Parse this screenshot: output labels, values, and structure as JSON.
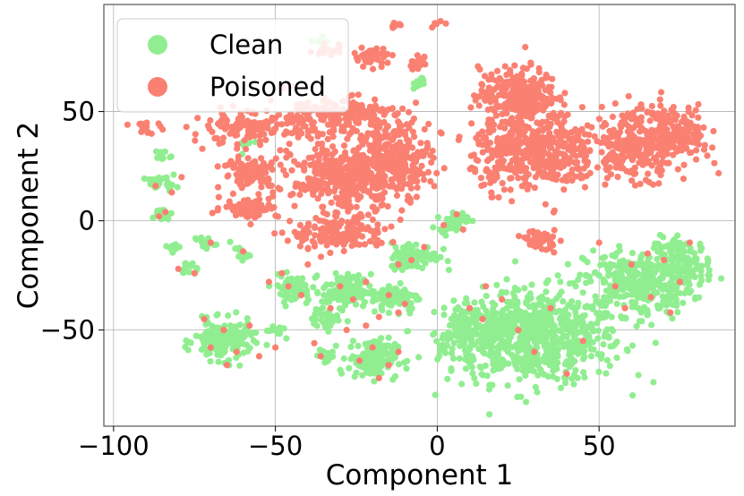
{
  "chart_data": {
    "type": "scatter",
    "title": "",
    "xlabel": "Component 1",
    "ylabel": "Component 2",
    "xlim": [
      -103,
      92
    ],
    "ylim": [
      -94,
      99
    ],
    "xticks": [
      -100,
      -50,
      0,
      50
    ],
    "yticks": [
      -50,
      0,
      50
    ],
    "xtick_labels": [
      "−100",
      "−50",
      "0",
      "50"
    ],
    "ytick_labels": [
      "−50",
      "0",
      "50"
    ],
    "grid": true,
    "legend_position": "top-left",
    "series": [
      {
        "name": "Clean",
        "color": "#90ee90",
        "clusters": [
          {
            "cx": 30,
            "cy": -53,
            "sx": 18,
            "sy": 14,
            "n": 700
          },
          {
            "cx": 62,
            "cy": -28,
            "sx": 11,
            "sy": 10,
            "n": 300
          },
          {
            "cx": 76,
            "cy": -20,
            "sx": 6,
            "sy": 8,
            "n": 120
          },
          {
            "cx": 10,
            "cy": -50,
            "sx": 6,
            "sy": 8,
            "n": 120
          },
          {
            "cx": -66,
            "cy": -55,
            "sx": 6,
            "sy": 6,
            "n": 170
          },
          {
            "cx": -20,
            "cy": -63,
            "sx": 5,
            "sy": 6,
            "n": 140
          },
          {
            "cx": -28,
            "cy": -32,
            "sx": 5,
            "sy": 5,
            "n": 110
          },
          {
            "cx": -13,
            "cy": -35,
            "sx": 5,
            "sy": 4,
            "n": 100
          },
          {
            "cx": -7,
            "cy": -16,
            "sx": 5,
            "sy": 4,
            "n": 110
          },
          {
            "cx": -45,
            "cy": -31,
            "sx": 4,
            "sy": 4,
            "n": 70
          },
          {
            "cx": 5,
            "cy": 0,
            "sx": 3,
            "sy": 3,
            "n": 45
          },
          {
            "cx": -85,
            "cy": 17,
            "sx": 3,
            "sy": 2,
            "n": 30
          },
          {
            "cx": -85,
            "cy": 3,
            "sx": 2,
            "sy": 2,
            "n": 20
          },
          {
            "cx": -5,
            "cy": 63,
            "sx": 1.5,
            "sy": 2,
            "n": 12
          },
          {
            "cx": -36,
            "cy": 82,
            "sx": 1.5,
            "sy": 1.5,
            "n": 8
          },
          {
            "cx": -85,
            "cy": 30,
            "sx": 2,
            "sy": 2,
            "n": 12
          },
          {
            "cx": -72,
            "cy": -10,
            "sx": 2,
            "sy": 2,
            "n": 14
          },
          {
            "cx": -77,
            "cy": -22,
            "sx": 2,
            "sy": 2,
            "n": 14
          },
          {
            "cx": -82,
            "cy": -12,
            "sx": 1.5,
            "sy": 1.5,
            "n": 10
          },
          {
            "cx": -61,
            "cy": -15,
            "sx": 2,
            "sy": 2,
            "n": 14
          },
          {
            "cx": -34,
            "cy": -45,
            "sx": 3,
            "sy": 3,
            "n": 30
          },
          {
            "cx": -34,
            "cy": -62,
            "sx": 2,
            "sy": 3,
            "n": 20
          },
          {
            "cx": -50,
            "cy": -50,
            "sx": 2,
            "sy": 2,
            "n": 14
          },
          {
            "cx": -60,
            "cy": 35,
            "sx": 2,
            "sy": 2,
            "n": 8
          }
        ]
      },
      {
        "name": "Poisoned",
        "color": "#fa8072",
        "clusters": [
          {
            "cx": 25,
            "cy": 58,
            "sx": 8,
            "sy": 8,
            "n": 260
          },
          {
            "cx": 30,
            "cy": 32,
            "sx": 13,
            "sy": 12,
            "n": 480
          },
          {
            "cx": 63,
            "cy": 36,
            "sx": 10,
            "sy": 11,
            "n": 300
          },
          {
            "cx": 76,
            "cy": 40,
            "sx": 5,
            "sy": 6,
            "n": 90
          },
          {
            "cx": -28,
            "cy": 20,
            "sx": 11,
            "sy": 10,
            "n": 380
          },
          {
            "cx": -12,
            "cy": 29,
            "sx": 7,
            "sy": 11,
            "n": 220
          },
          {
            "cx": -32,
            "cy": 48,
            "sx": 14,
            "sy": 6,
            "n": 200
          },
          {
            "cx": -58,
            "cy": 42,
            "sx": 12,
            "sy": 5,
            "n": 130
          },
          {
            "cx": -57,
            "cy": 22,
            "sx": 6,
            "sy": 5,
            "n": 100
          },
          {
            "cx": -58,
            "cy": 6,
            "sx": 6,
            "sy": 3,
            "n": 70
          },
          {
            "cx": -30,
            "cy": -6,
            "sx": 10,
            "sy": 5,
            "n": 170
          },
          {
            "cx": 32,
            "cy": -9,
            "sx": 3,
            "sy": 3,
            "n": 55
          },
          {
            "cx": -20,
            "cy": 75,
            "sx": 4,
            "sy": 3,
            "n": 40
          },
          {
            "cx": -6,
            "cy": 72,
            "sx": 2,
            "sy": 2,
            "n": 16
          },
          {
            "cx": -34,
            "cy": 78,
            "sx": 3,
            "sy": 2,
            "n": 16
          },
          {
            "cx": -13,
            "cy": 89,
            "sx": 1.5,
            "sy": 1,
            "n": 8
          },
          {
            "cx": 0,
            "cy": 90,
            "sx": 1,
            "sy": 1,
            "n": 5
          },
          {
            "cx": -90,
            "cy": 43,
            "sx": 3,
            "sy": 2,
            "n": 18
          }
        ],
        "scatter": [
          {
            "x": -82,
            "y": 13
          },
          {
            "x": -87,
            "y": 16
          },
          {
            "x": -79,
            "y": 20
          },
          {
            "x": -84,
            "y": 4
          },
          {
            "x": -86,
            "y": 2
          },
          {
            "x": -70,
            "y": -10
          },
          {
            "x": -75,
            "y": -24
          },
          {
            "x": -80,
            "y": -22
          },
          {
            "x": -60,
            "y": -14
          },
          {
            "x": -66,
            "y": -50
          },
          {
            "x": -70,
            "y": -58
          },
          {
            "x": -62,
            "y": -60
          },
          {
            "x": -58,
            "y": -48
          },
          {
            "x": -72,
            "y": -45
          },
          {
            "x": -65,
            "y": -66
          },
          {
            "x": -55,
            "y": -62
          },
          {
            "x": -50,
            "y": -58
          },
          {
            "x": -46,
            "y": -30
          },
          {
            "x": -42,
            "y": -34
          },
          {
            "x": -48,
            "y": -24
          },
          {
            "x": -30,
            "y": -30
          },
          {
            "x": -26,
            "y": -36
          },
          {
            "x": -22,
            "y": -28
          },
          {
            "x": -33,
            "y": -40
          },
          {
            "x": -15,
            "y": -34
          },
          {
            "x": -10,
            "y": -38
          },
          {
            "x": -12,
            "y": -42
          },
          {
            "x": -18,
            "y": -44
          },
          {
            "x": -20,
            "y": -58
          },
          {
            "x": -24,
            "y": -64
          },
          {
            "x": -15,
            "y": -66
          },
          {
            "x": -18,
            "y": -72
          },
          {
            "x": -12,
            "y": -60
          },
          {
            "x": -36,
            "y": -62
          },
          {
            "x": -38,
            "y": -56
          },
          {
            "x": -8,
            "y": -18
          },
          {
            "x": -4,
            "y": -12
          },
          {
            "x": -12,
            "y": -20
          },
          {
            "x": 2,
            "y": -2
          },
          {
            "x": 6,
            "y": 3
          },
          {
            "x": 8,
            "y": -4
          },
          {
            "x": 15,
            "y": -30
          },
          {
            "x": 20,
            "y": -36
          },
          {
            "x": 10,
            "y": -40
          },
          {
            "x": 14,
            "y": -45
          },
          {
            "x": 25,
            "y": -50
          },
          {
            "x": 35,
            "y": -40
          },
          {
            "x": 45,
            "y": -55
          },
          {
            "x": 55,
            "y": -30
          },
          {
            "x": 60,
            "y": -20
          },
          {
            "x": 65,
            "y": -15
          },
          {
            "x": 70,
            "y": -18
          },
          {
            "x": 75,
            "y": -28
          },
          {
            "x": 78,
            "y": -10
          },
          {
            "x": 58,
            "y": -40
          },
          {
            "x": 66,
            "y": -35
          },
          {
            "x": 72,
            "y": -42
          },
          {
            "x": 50,
            "y": -10
          },
          {
            "x": 30,
            "y": -60
          },
          {
            "x": 40,
            "y": -70
          },
          {
            "x": -28,
            "y": -50
          },
          {
            "x": -22,
            "y": -48
          },
          {
            "x": -40,
            "y": -20
          },
          {
            "x": -52,
            "y": -28
          }
        ]
      }
    ]
  }
}
